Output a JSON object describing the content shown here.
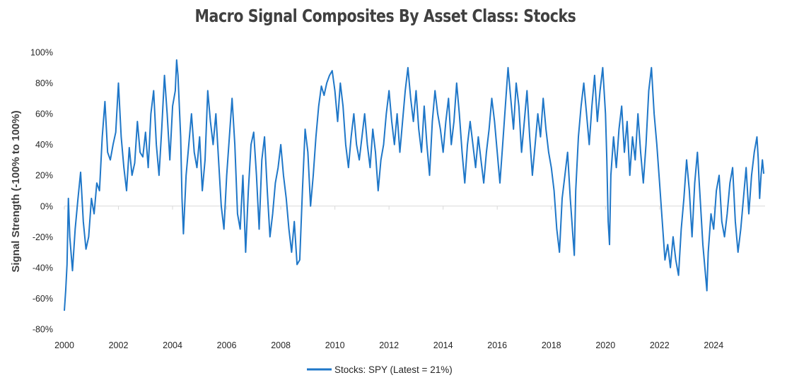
{
  "chart_data": {
    "type": "line",
    "title": "Macro Signal Composites By Asset Class: Stocks",
    "xlabel": "",
    "ylabel": "Signal Strength (-100% to 100%)",
    "xlim": [
      2000,
      2025.9
    ],
    "ylim": [
      -80,
      100
    ],
    "y_ticks": [
      100,
      80,
      60,
      40,
      20,
      0,
      -20,
      -40,
      -60,
      -80
    ],
    "y_tick_labels": [
      "100%",
      "80%",
      "60%",
      "40%",
      "20%",
      "0%",
      "-20%",
      "-40%",
      "-60%",
      "-80%"
    ],
    "x_ticks": [
      2000,
      2002,
      2004,
      2006,
      2008,
      2010,
      2012,
      2014,
      2016,
      2018,
      2020,
      2022,
      2024
    ],
    "x_tick_labels": [
      "2000",
      "2002",
      "2004",
      "2006",
      "2008",
      "2010",
      "2012",
      "2014",
      "2016",
      "2018",
      "2020",
      "2022",
      "2024"
    ],
    "zero_line": true,
    "legend_position": "bottom-center",
    "series": [
      {
        "name": "Stocks: SPY (Latest = 21%)",
        "color": "#1f77c8",
        "points": [
          [
            2000.0,
            -68
          ],
          [
            2000.05,
            -55
          ],
          [
            2000.1,
            -38
          ],
          [
            2000.15,
            5
          ],
          [
            2000.2,
            -20
          ],
          [
            2000.3,
            -42
          ],
          [
            2000.4,
            -15
          ],
          [
            2000.5,
            4
          ],
          [
            2000.6,
            22
          ],
          [
            2000.7,
            -10
          ],
          [
            2000.8,
            -28
          ],
          [
            2000.9,
            -20
          ],
          [
            2001.0,
            5
          ],
          [
            2001.1,
            -5
          ],
          [
            2001.2,
            15
          ],
          [
            2001.3,
            10
          ],
          [
            2001.4,
            45
          ],
          [
            2001.5,
            68
          ],
          [
            2001.6,
            35
          ],
          [
            2001.7,
            30
          ],
          [
            2001.8,
            40
          ],
          [
            2001.9,
            48
          ],
          [
            2002.0,
            80
          ],
          [
            2002.1,
            45
          ],
          [
            2002.2,
            25
          ],
          [
            2002.3,
            10
          ],
          [
            2002.4,
            38
          ],
          [
            2002.5,
            20
          ],
          [
            2002.6,
            28
          ],
          [
            2002.7,
            55
          ],
          [
            2002.8,
            35
          ],
          [
            2002.9,
            32
          ],
          [
            2003.0,
            48
          ],
          [
            2003.1,
            25
          ],
          [
            2003.2,
            60
          ],
          [
            2003.3,
            75
          ],
          [
            2003.4,
            40
          ],
          [
            2003.5,
            20
          ],
          [
            2003.6,
            50
          ],
          [
            2003.7,
            85
          ],
          [
            2003.8,
            60
          ],
          [
            2003.9,
            30
          ],
          [
            2004.0,
            65
          ],
          [
            2004.1,
            75
          ],
          [
            2004.15,
            95
          ],
          [
            2004.2,
            85
          ],
          [
            2004.3,
            45
          ],
          [
            2004.35,
            5
          ],
          [
            2004.4,
            -18
          ],
          [
            2004.5,
            20
          ],
          [
            2004.6,
            40
          ],
          [
            2004.7,
            60
          ],
          [
            2004.8,
            35
          ],
          [
            2004.9,
            25
          ],
          [
            2005.0,
            45
          ],
          [
            2005.1,
            10
          ],
          [
            2005.2,
            30
          ],
          [
            2005.3,
            75
          ],
          [
            2005.4,
            55
          ],
          [
            2005.5,
            40
          ],
          [
            2005.6,
            60
          ],
          [
            2005.7,
            30
          ],
          [
            2005.8,
            0
          ],
          [
            2005.9,
            -15
          ],
          [
            2006.0,
            20
          ],
          [
            2006.1,
            45
          ],
          [
            2006.2,
            70
          ],
          [
            2006.3,
            40
          ],
          [
            2006.4,
            -5
          ],
          [
            2006.5,
            -15
          ],
          [
            2006.6,
            20
          ],
          [
            2006.7,
            -30
          ],
          [
            2006.8,
            10
          ],
          [
            2006.9,
            40
          ],
          [
            2007.0,
            48
          ],
          [
            2007.1,
            20
          ],
          [
            2007.2,
            -15
          ],
          [
            2007.3,
            30
          ],
          [
            2007.4,
            45
          ],
          [
            2007.5,
            10
          ],
          [
            2007.6,
            -20
          ],
          [
            2007.7,
            -5
          ],
          [
            2007.8,
            15
          ],
          [
            2007.9,
            25
          ],
          [
            2008.0,
            40
          ],
          [
            2008.1,
            20
          ],
          [
            2008.2,
            5
          ],
          [
            2008.3,
            -15
          ],
          [
            2008.4,
            -30
          ],
          [
            2008.5,
            -10
          ],
          [
            2008.6,
            -38
          ],
          [
            2008.7,
            -35
          ],
          [
            2008.8,
            10
          ],
          [
            2008.9,
            50
          ],
          [
            2009.0,
            35
          ],
          [
            2009.1,
            0
          ],
          [
            2009.2,
            20
          ],
          [
            2009.3,
            45
          ],
          [
            2009.4,
            65
          ],
          [
            2009.5,
            78
          ],
          [
            2009.6,
            72
          ],
          [
            2009.7,
            80
          ],
          [
            2009.8,
            85
          ],
          [
            2009.9,
            88
          ],
          [
            2010.0,
            75
          ],
          [
            2010.1,
            55
          ],
          [
            2010.2,
            80
          ],
          [
            2010.3,
            65
          ],
          [
            2010.4,
            40
          ],
          [
            2010.5,
            25
          ],
          [
            2010.6,
            45
          ],
          [
            2010.7,
            60
          ],
          [
            2010.8,
            40
          ],
          [
            2010.9,
            30
          ],
          [
            2011.0,
            45
          ],
          [
            2011.1,
            60
          ],
          [
            2011.2,
            40
          ],
          [
            2011.3,
            25
          ],
          [
            2011.4,
            50
          ],
          [
            2011.5,
            35
          ],
          [
            2011.6,
            10
          ],
          [
            2011.7,
            30
          ],
          [
            2011.8,
            40
          ],
          [
            2011.9,
            60
          ],
          [
            2012.0,
            75
          ],
          [
            2012.1,
            55
          ],
          [
            2012.2,
            40
          ],
          [
            2012.3,
            60
          ],
          [
            2012.4,
            35
          ],
          [
            2012.5,
            55
          ],
          [
            2012.6,
            75
          ],
          [
            2012.7,
            90
          ],
          [
            2012.8,
            70
          ],
          [
            2012.9,
            55
          ],
          [
            2013.0,
            75
          ],
          [
            2013.1,
            50
          ],
          [
            2013.2,
            35
          ],
          [
            2013.3,
            65
          ],
          [
            2013.4,
            40
          ],
          [
            2013.5,
            20
          ],
          [
            2013.6,
            55
          ],
          [
            2013.7,
            75
          ],
          [
            2013.8,
            60
          ],
          [
            2013.9,
            50
          ],
          [
            2014.0,
            35
          ],
          [
            2014.1,
            55
          ],
          [
            2014.2,
            70
          ],
          [
            2014.3,
            40
          ],
          [
            2014.4,
            55
          ],
          [
            2014.5,
            80
          ],
          [
            2014.6,
            60
          ],
          [
            2014.7,
            35
          ],
          [
            2014.8,
            15
          ],
          [
            2014.9,
            40
          ],
          [
            2015.0,
            55
          ],
          [
            2015.1,
            40
          ],
          [
            2015.2,
            25
          ],
          [
            2015.3,
            45
          ],
          [
            2015.4,
            30
          ],
          [
            2015.5,
            15
          ],
          [
            2015.6,
            35
          ],
          [
            2015.7,
            50
          ],
          [
            2015.8,
            70
          ],
          [
            2015.9,
            55
          ],
          [
            2016.0,
            35
          ],
          [
            2016.1,
            15
          ],
          [
            2016.2,
            40
          ],
          [
            2016.3,
            65
          ],
          [
            2016.4,
            90
          ],
          [
            2016.5,
            70
          ],
          [
            2016.6,
            50
          ],
          [
            2016.7,
            80
          ],
          [
            2016.8,
            65
          ],
          [
            2016.9,
            35
          ],
          [
            2017.0,
            55
          ],
          [
            2017.1,
            75
          ],
          [
            2017.2,
            45
          ],
          [
            2017.3,
            20
          ],
          [
            2017.4,
            40
          ],
          [
            2017.5,
            60
          ],
          [
            2017.6,
            45
          ],
          [
            2017.7,
            70
          ],
          [
            2017.8,
            50
          ],
          [
            2017.9,
            35
          ],
          [
            2018.0,
            25
          ],
          [
            2018.1,
            10
          ],
          [
            2018.2,
            -15
          ],
          [
            2018.3,
            -30
          ],
          [
            2018.4,
            5
          ],
          [
            2018.5,
            20
          ],
          [
            2018.6,
            35
          ],
          [
            2018.7,
            5
          ],
          [
            2018.8,
            -20
          ],
          [
            2018.85,
            -32
          ],
          [
            2018.9,
            10
          ],
          [
            2019.0,
            45
          ],
          [
            2019.1,
            65
          ],
          [
            2019.2,
            80
          ],
          [
            2019.3,
            60
          ],
          [
            2019.4,
            40
          ],
          [
            2019.5,
            65
          ],
          [
            2019.6,
            85
          ],
          [
            2019.7,
            55
          ],
          [
            2019.8,
            75
          ],
          [
            2019.9,
            90
          ],
          [
            2020.0,
            60
          ],
          [
            2020.05,
            30
          ],
          [
            2020.1,
            -10
          ],
          [
            2020.15,
            -25
          ],
          [
            2020.2,
            20
          ],
          [
            2020.3,
            45
          ],
          [
            2020.4,
            25
          ],
          [
            2020.5,
            50
          ],
          [
            2020.6,
            65
          ],
          [
            2020.7,
            35
          ],
          [
            2020.8,
            55
          ],
          [
            2020.9,
            20
          ],
          [
            2021.0,
            45
          ],
          [
            2021.1,
            30
          ],
          [
            2021.2,
            60
          ],
          [
            2021.3,
            35
          ],
          [
            2021.4,
            15
          ],
          [
            2021.5,
            40
          ],
          [
            2021.6,
            75
          ],
          [
            2021.7,
            90
          ],
          [
            2021.8,
            60
          ],
          [
            2021.9,
            40
          ],
          [
            2022.0,
            15
          ],
          [
            2022.1,
            -10
          ],
          [
            2022.2,
            -35
          ],
          [
            2022.3,
            -25
          ],
          [
            2022.4,
            -40
          ],
          [
            2022.5,
            -20
          ],
          [
            2022.6,
            -35
          ],
          [
            2022.7,
            -45
          ],
          [
            2022.8,
            -15
          ],
          [
            2022.9,
            5
          ],
          [
            2023.0,
            30
          ],
          [
            2023.1,
            10
          ],
          [
            2023.2,
            -20
          ],
          [
            2023.3,
            15
          ],
          [
            2023.4,
            35
          ],
          [
            2023.5,
            5
          ],
          [
            2023.6,
            -25
          ],
          [
            2023.7,
            -45
          ],
          [
            2023.75,
            -55
          ],
          [
            2023.8,
            -30
          ],
          [
            2023.9,
            -5
          ],
          [
            2024.0,
            -15
          ],
          [
            2024.1,
            10
          ],
          [
            2024.2,
            20
          ],
          [
            2024.3,
            -10
          ],
          [
            2024.4,
            -20
          ],
          [
            2024.5,
            -5
          ],
          [
            2024.6,
            15
          ],
          [
            2024.7,
            25
          ],
          [
            2024.8,
            -10
          ],
          [
            2024.9,
            -30
          ],
          [
            2025.0,
            -15
          ],
          [
            2025.1,
            5
          ],
          [
            2025.2,
            25
          ],
          [
            2025.3,
            -5
          ],
          [
            2025.4,
            20
          ],
          [
            2025.5,
            35
          ],
          [
            2025.6,
            45
          ],
          [
            2025.65,
            30
          ],
          [
            2025.7,
            5
          ],
          [
            2025.75,
            20
          ],
          [
            2025.8,
            30
          ],
          [
            2025.85,
            21
          ]
        ]
      }
    ]
  }
}
